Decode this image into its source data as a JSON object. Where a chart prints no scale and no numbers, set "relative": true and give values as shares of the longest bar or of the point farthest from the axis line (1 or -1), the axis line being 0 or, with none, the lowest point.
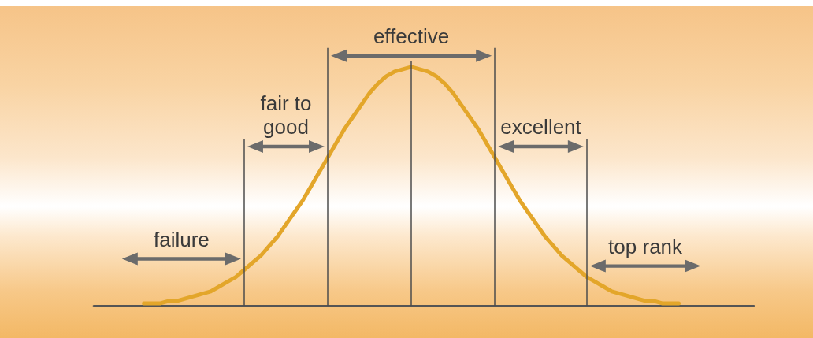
{
  "chart_data": {
    "type": "line",
    "relative": true,
    "grid": "x",
    "categories": [
      null,
      null,
      null,
      null,
      null,
      null,
      null,
      null,
      null,
      null,
      null,
      null,
      null,
      null,
      null,
      null,
      null,
      null,
      null,
      null,
      null,
      null,
      null,
      null,
      null,
      null,
      null,
      null,
      null,
      null,
      null,
      null,
      null,
      null,
      null,
      null,
      null,
      null,
      null,
      null,
      null,
      null,
      null,
      null,
      null,
      null,
      null,
      null,
      null,
      null,
      null,
      null,
      null,
      null,
      null,
      null,
      null,
      null,
      null,
      null,
      null,
      null,
      null,
      null,
      null,
      null,
      null,
      null,
      null,
      null,
      null,
      null,
      null,
      null,
      null,
      null,
      null,
      null,
      null,
      null
    ],
    "values": [
      null,
      null,
      null,
      null,
      null,
      null,
      0.01,
      0.01,
      0.01,
      0.02,
      0.02,
      0.03,
      0.04,
      0.05,
      0.06,
      0.08,
      0.1,
      0.12,
      0.15,
      0.18,
      0.21,
      0.25,
      0.29,
      0.34,
      0.39,
      0.44,
      0.5,
      0.56,
      0.62,
      0.68,
      0.74,
      0.79,
      0.84,
      0.89,
      0.93,
      0.96,
      0.98,
      0.99,
      1,
      0.99,
      0.98,
      0.96,
      0.93,
      0.89,
      0.84,
      0.79,
      0.74,
      0.68,
      0.62,
      0.56,
      0.5,
      0.44,
      0.39,
      0.34,
      0.29,
      0.25,
      0.21,
      0.18,
      0.15,
      0.12,
      0.1,
      0.08,
      0.06,
      0.05,
      0.04,
      0.03,
      0.02,
      0.02,
      0.01,
      0.01,
      0.01,
      null,
      null,
      null,
      null,
      null,
      null,
      null,
      null,
      null
    ],
    "color": "#e3a62a",
    "annotations": [
      "failure",
      "fair to good",
      "effective",
      "excellent",
      "top rank"
    ]
  }
}
